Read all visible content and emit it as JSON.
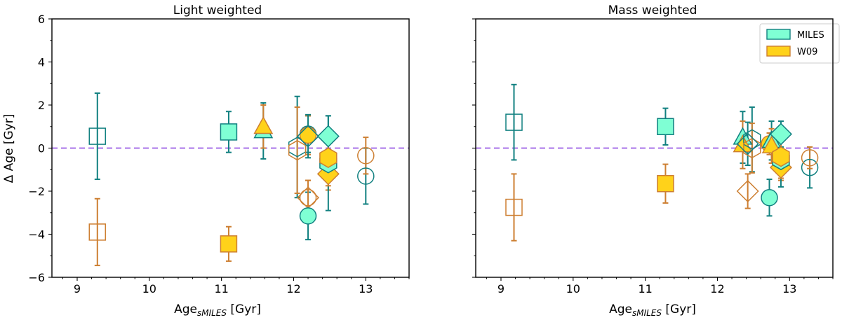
{
  "chart_data": [
    {
      "type": "scatter",
      "title": "Light weighted",
      "xlabel_main": "Age",
      "xlabel_sub": "sMILES",
      "xlabel_unit": " [Gyr]",
      "ylabel": "Δ Age [Gyr]",
      "xlim": [
        8.65,
        13.6
      ],
      "ylim": [
        -6,
        6
      ],
      "xticks": [
        9,
        10,
        11,
        12,
        13
      ],
      "yticks": [
        -6,
        -4,
        -2,
        0,
        2,
        4,
        6
      ],
      "ytick_labels": [
        "−6",
        "−4",
        "−2",
        "0",
        "2",
        "4",
        "6"
      ],
      "reference_line_y": 0,
      "points": [
        {
          "series": "MILES",
          "marker": "square",
          "filled": false,
          "x": 9.28,
          "y": 0.55,
          "err": 2.0
        },
        {
          "series": "W09",
          "marker": "square",
          "filled": false,
          "x": 9.28,
          "y": -3.9,
          "err": 1.55
        },
        {
          "series": "MILES",
          "marker": "square",
          "filled": true,
          "x": 11.1,
          "y": 0.75,
          "err": 0.95
        },
        {
          "series": "W09",
          "marker": "square",
          "filled": true,
          "x": 11.1,
          "y": -4.45,
          "err": 0.8
        },
        {
          "series": "MILES",
          "marker": "triangle",
          "filled": true,
          "x": 11.58,
          "y": 0.8,
          "err": 1.3
        },
        {
          "series": "W09",
          "marker": "triangle",
          "filled": true,
          "x": 11.58,
          "y": 1.0,
          "err": 1.0
        },
        {
          "series": "MILES",
          "marker": "hexagon",
          "filled": false,
          "x": 12.05,
          "y": 0.05,
          "err": 2.35
        },
        {
          "series": "W09",
          "marker": "hexagon",
          "filled": false,
          "x": 12.05,
          "y": -0.1,
          "err": 2.0
        },
        {
          "series": "MILES",
          "marker": "circle",
          "filled": true,
          "x": 12.2,
          "y": 0.65,
          "err": 0.85
        },
        {
          "series": "W09",
          "marker": "circle",
          "filled": true,
          "x": 12.2,
          "y": 0.6,
          "err": 0.9
        },
        {
          "series": "MILES",
          "marker": "diamond",
          "filled": false,
          "x": 12.2,
          "y": 0.55,
          "err": 1.0
        },
        {
          "series": "W09",
          "marker": "diamond",
          "filled": false,
          "x": 12.2,
          "y": -2.3,
          "err": 0.8
        },
        {
          "series": "MILES",
          "marker": "circle",
          "filled": true,
          "x": 12.2,
          "y": -3.15,
          "err": 1.1
        },
        {
          "series": "W09",
          "marker": "circle",
          "filled": false,
          "x": 12.2,
          "y": -2.3,
          "err": 0.8
        },
        {
          "series": "MILES",
          "marker": "diamond",
          "filled": true,
          "x": 12.48,
          "y": 0.55,
          "err": 0.95
        },
        {
          "series": "W09",
          "marker": "diamond",
          "filled": true,
          "x": 12.48,
          "y": -1.2,
          "err": 0.75
        },
        {
          "series": "MILES",
          "marker": "hexagon",
          "filled": true,
          "x": 12.48,
          "y": -0.7,
          "err": 2.2
        },
        {
          "series": "W09",
          "marker": "hexagon",
          "filled": true,
          "x": 12.48,
          "y": -0.45,
          "err": 1.3
        },
        {
          "series": "MILES",
          "marker": "circle",
          "filled": false,
          "x": 13.0,
          "y": -1.3,
          "err": 1.3
        },
        {
          "series": "W09",
          "marker": "circle",
          "filled": false,
          "x": 13.0,
          "y": -0.35,
          "err": 0.85
        }
      ]
    },
    {
      "type": "scatter",
      "title": "Mass weighted",
      "xlabel_main": "Age",
      "xlabel_sub": "sMILES",
      "xlabel_unit": " [Gyr]",
      "ylabel": "",
      "xlim": [
        8.65,
        13.6
      ],
      "ylim": [
        -6,
        6
      ],
      "xticks": [
        9,
        10,
        11,
        12,
        13
      ],
      "yticks": [
        -6,
        -4,
        -2,
        0,
        2,
        4,
        6
      ],
      "reference_line_y": 0,
      "legend": {
        "position": "top-right",
        "entries": [
          {
            "name": "MILES"
          },
          {
            "name": "W09"
          }
        ]
      },
      "points": [
        {
          "series": "MILES",
          "marker": "square",
          "filled": false,
          "x": 9.18,
          "y": 1.2,
          "err": 1.75
        },
        {
          "series": "W09",
          "marker": "square",
          "filled": false,
          "x": 9.18,
          "y": -2.75,
          "err": 1.55
        },
        {
          "series": "MILES",
          "marker": "square",
          "filled": true,
          "x": 11.28,
          "y": 1.0,
          "err": 0.85
        },
        {
          "series": "W09",
          "marker": "square",
          "filled": true,
          "x": 11.28,
          "y": -1.65,
          "err": 0.9
        },
        {
          "series": "MILES",
          "marker": "triangle",
          "filled": true,
          "x": 12.35,
          "y": 0.5,
          "err": 1.2
        },
        {
          "series": "W09",
          "marker": "triangle",
          "filled": true,
          "x": 12.35,
          "y": 0.15,
          "err": 1.1
        },
        {
          "series": "MILES",
          "marker": "hexagon",
          "filled": false,
          "x": 12.48,
          "y": 0.4,
          "err": 1.5
        },
        {
          "series": "W09",
          "marker": "hexagon",
          "filled": false,
          "x": 12.48,
          "y": 0.0,
          "err": 1.15
        },
        {
          "series": "MILES",
          "marker": "diamond",
          "filled": false,
          "x": 12.42,
          "y": 0.2,
          "err": 1.0
        },
        {
          "series": "W09",
          "marker": "diamond",
          "filled": false,
          "x": 12.42,
          "y": -2.0,
          "err": 0.8
        },
        {
          "series": "MILES",
          "marker": "circle",
          "filled": true,
          "x": 12.72,
          "y": -2.3,
          "err": 0.85
        },
        {
          "series": "W09",
          "marker": "circle",
          "filled": true,
          "x": 12.72,
          "y": 0.2,
          "err": 0.5
        },
        {
          "series": "MILES",
          "marker": "triangle",
          "filled": true,
          "x": 12.75,
          "y": 0.35,
          "err": 0.9
        },
        {
          "series": "W09",
          "marker": "triangle",
          "filled": true,
          "x": 12.75,
          "y": 0.1,
          "err": 0.8
        },
        {
          "series": "MILES",
          "marker": "diamond",
          "filled": true,
          "x": 12.88,
          "y": 0.65,
          "err": 0.6
        },
        {
          "series": "W09",
          "marker": "diamond",
          "filled": true,
          "x": 12.88,
          "y": -0.9,
          "err": 0.6
        },
        {
          "series": "MILES",
          "marker": "hexagon",
          "filled": true,
          "x": 12.88,
          "y": -0.55,
          "err": 1.25
        },
        {
          "series": "W09",
          "marker": "hexagon",
          "filled": true,
          "x": 12.88,
          "y": -0.4,
          "err": 1.0
        },
        {
          "series": "MILES",
          "marker": "circle",
          "filled": false,
          "x": 13.28,
          "y": -0.9,
          "err": 0.95
        },
        {
          "series": "W09",
          "marker": "circle",
          "filled": false,
          "x": 13.28,
          "y": -0.45,
          "err": 0.5
        }
      ]
    }
  ],
  "colors": {
    "MILES": {
      "fill": "#7fffd4",
      "edge": "#118080"
    },
    "W09": {
      "fill": "#ffd21a",
      "edge": "#cd7f32"
    },
    "reference_line": "#9b5de5"
  }
}
